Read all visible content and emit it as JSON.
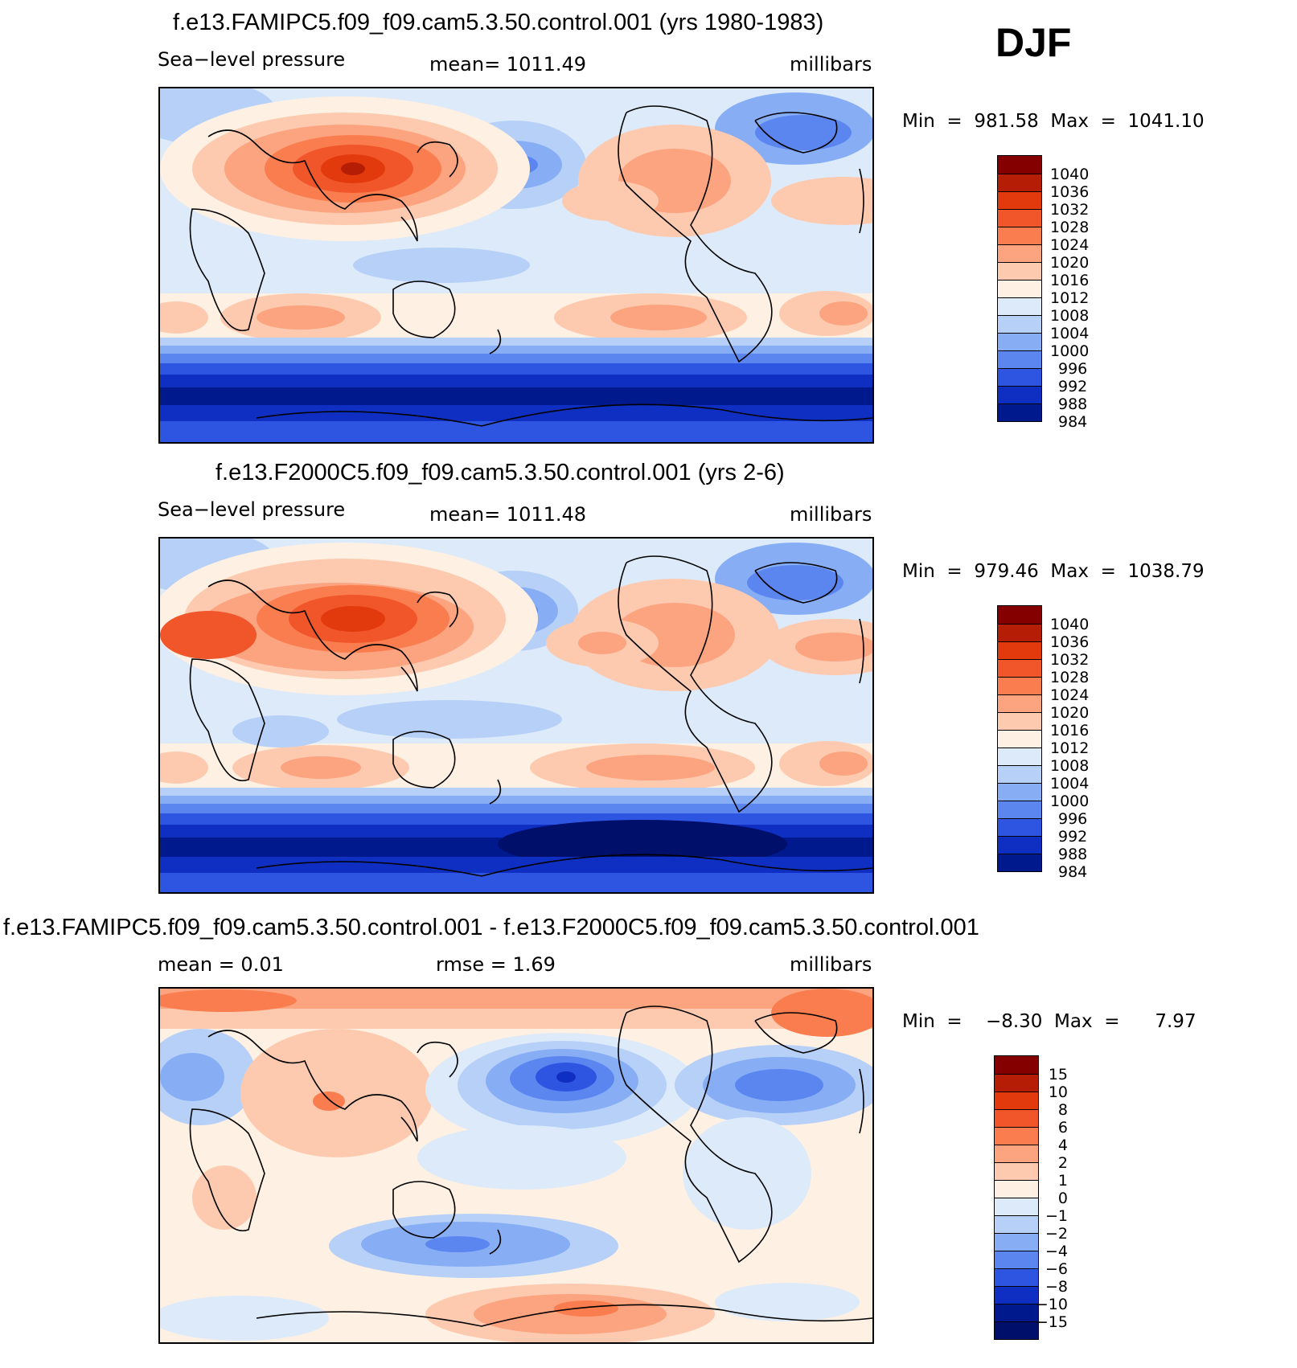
{
  "season": "DJF",
  "panels": [
    {
      "title": "f.e13.FAMIPC5.f09_f09.cam5.3.50.control.001 (yrs 1980-1983)",
      "left_label": "Sea−level pressure",
      "center_label": "mean=  1011.49",
      "right_label": "millibars",
      "minmax": "Min  =  981.58  Max  =  1041.10",
      "kind": "abs",
      "levels": [
        "1040",
        "1036",
        "1032",
        "1028",
        "1024",
        "1020",
        "1016",
        "1012",
        "1008",
        "1004",
        "1000",
        "996",
        "992",
        "988",
        "984"
      ]
    },
    {
      "title": "f.e13.F2000C5.f09_f09.cam5.3.50.control.001 (yrs 2-6)",
      "left_label": "Sea−level pressure",
      "center_label": "mean=  1011.48",
      "right_label": "millibars",
      "minmax": "Min  =  979.46  Max  =  1038.79",
      "kind": "abs",
      "levels": [
        "1040",
        "1036",
        "1032",
        "1028",
        "1024",
        "1020",
        "1016",
        "1012",
        "1008",
        "1004",
        "1000",
        "996",
        "992",
        "988",
        "984"
      ]
    },
    {
      "title": "f.e13.FAMIPC5.f09_f09.cam5.3.50.control.001 - f.e13.F2000C5.f09_f09.cam5.3.50.control.001",
      "left_label": "mean  =     0.01",
      "center_label": "rmse  =      1.69",
      "right_label": "millibars",
      "minmax": "Min  =    −8.30  Max  =      7.97",
      "kind": "diff",
      "levels": [
        "15",
        "10",
        "8",
        "6",
        "4",
        "2",
        "1",
        "0",
        "−1",
        "−2",
        "−4",
        "−6",
        "−8",
        "−10",
        "−15"
      ]
    }
  ],
  "colors": {
    "scale": [
      "#840000",
      "#b51e05",
      "#e23a0c",
      "#f0562a",
      "#fa7d4f",
      "#fca37f",
      "#fdcab0",
      "#fef0e2",
      "#ddeafa",
      "#b6d0f8",
      "#87aef5",
      "#5b86f0",
      "#2d55e2",
      "#0f2fc2",
      "#001a8e",
      "#000f6a"
    ]
  },
  "chart_data": {
    "type": "heatmap",
    "variable": "Sea−level pressure",
    "units": "millibars",
    "season": "DJF",
    "panels": [
      {
        "case": "f.e13.FAMIPC5.f09_f09.cam5.3.50.control.001 (yrs 1980-1983)",
        "mean": 1011.49,
        "min": 981.58,
        "max": 1041.1,
        "contour_levels": [
          984,
          988,
          992,
          996,
          1000,
          1004,
          1008,
          1012,
          1016,
          1020,
          1024,
          1028,
          1032,
          1036,
          1040
        ]
      },
      {
        "case": "f.e13.F2000C5.f09_f09.cam5.3.50.control.001 (yrs 2-6)",
        "mean": 1011.48,
        "min": 979.46,
        "max": 1038.79,
        "contour_levels": [
          984,
          988,
          992,
          996,
          1000,
          1004,
          1008,
          1012,
          1016,
          1020,
          1024,
          1028,
          1032,
          1036,
          1040
        ]
      },
      {
        "case": "f.e13.FAMIPC5.f09_f09.cam5.3.50.control.001 - f.e13.F2000C5.f09_f09.cam5.3.50.control.001",
        "mean": 0.01,
        "rmse": 1.69,
        "min": -8.3,
        "max": 7.97,
        "contour_levels": [
          -15,
          -10,
          -8,
          -6,
          -4,
          -2,
          -1,
          0,
          1,
          2,
          4,
          6,
          8,
          10,
          15
        ]
      }
    ]
  }
}
